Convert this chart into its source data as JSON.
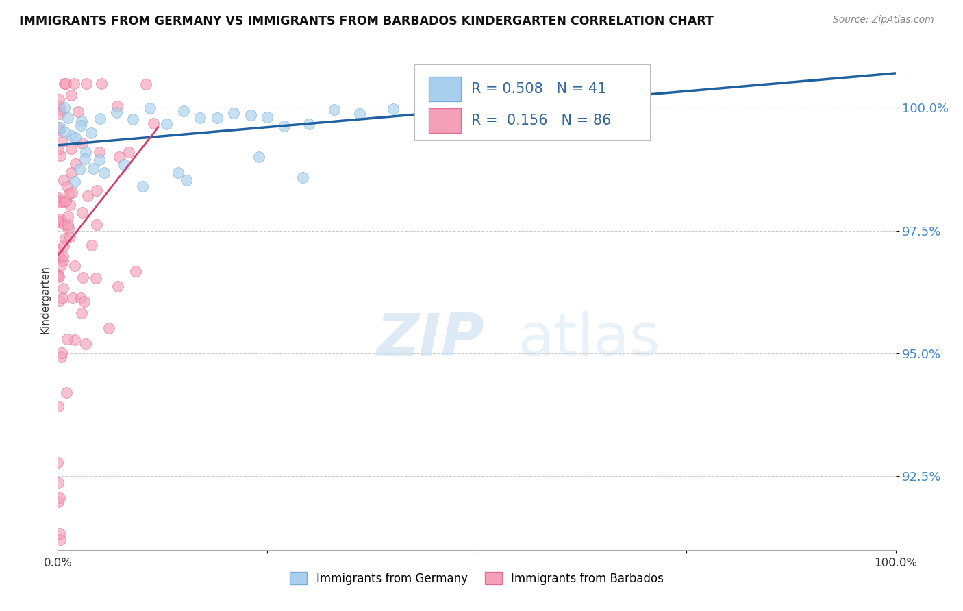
{
  "title": "IMMIGRANTS FROM GERMANY VS IMMIGRANTS FROM BARBADOS KINDERGARTEN CORRELATION CHART",
  "source_text": "Source: ZipAtlas.com",
  "ylabel": "Kindergarten",
  "yticks": [
    92.5,
    95.0,
    97.5,
    100.0
  ],
  "ytick_labels": [
    "92.5%",
    "95.0%",
    "97.5%",
    "100.0%"
  ],
  "xmin": 0.0,
  "xmax": 100.0,
  "ymin": 91.0,
  "ymax": 101.2,
  "blue_r": 0.508,
  "blue_n": 41,
  "pink_r": 0.156,
  "pink_n": 86,
  "blue_color": "#A8D0EE",
  "pink_color": "#F4A0B8",
  "blue_edge_color": "#7AADD4",
  "pink_edge_color": "#E07090",
  "blue_line_color": "#2060A0",
  "pink_line_color": "#D04070",
  "legend_blue_label": "Immigrants from Germany",
  "legend_pink_label": "Immigrants from Barbados"
}
